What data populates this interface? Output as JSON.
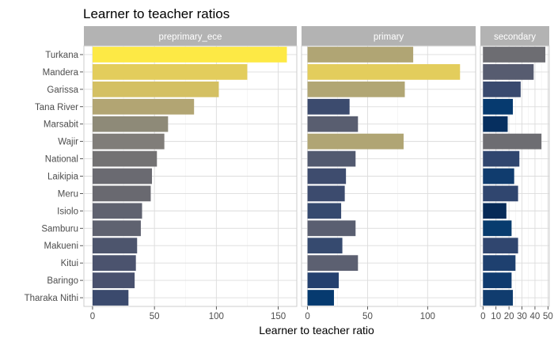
{
  "chart_data": {
    "type": "bar",
    "orientation": "horizontal",
    "title": "Learner to teacher ratios",
    "xlabel": "Learner to teacher ratio",
    "ylabel": "",
    "grid": true,
    "legend": "none",
    "categories": [
      "Turkana",
      "Mandera",
      "Garissa",
      "Tana River",
      "Marsabit",
      "Wajir",
      "National",
      "Laikipia",
      "Meru",
      "Isiolo",
      "Samburu",
      "Makueni",
      "Kitui",
      "Baringo",
      "Tharaka Nithi"
    ],
    "facets": [
      {
        "name": "preprimary_ece",
        "xlim": [
          -7,
          165
        ],
        "ticks": [
          0,
          50,
          100,
          150
        ],
        "tick_labels": [
          "0",
          "50",
          "100",
          "150"
        ],
        "values": [
          157,
          125,
          102,
          82,
          61,
          58,
          52,
          48,
          47,
          40,
          39,
          36,
          35,
          34,
          29
        ],
        "colors": [
          "#fde945",
          "#e3cd5c",
          "#d4c063",
          "#b2a573",
          "#8e8a78",
          "#807d79",
          "#737273",
          "#6a6a71",
          "#696970",
          "#5f6270",
          "#5f6270",
          "#4d556d",
          "#4b536e",
          "#49516e",
          "#3b4a6d"
        ]
      },
      {
        "name": "primary",
        "xlim": [
          -5,
          140
        ],
        "ticks": [
          0,
          50,
          100
        ],
        "tick_labels": [
          "0",
          "50",
          "100"
        ],
        "values": [
          88,
          127,
          81,
          35,
          42,
          80,
          40,
          32,
          31,
          28,
          40,
          29,
          42,
          26,
          22
        ],
        "colors": [
          "#b0a574",
          "#e3cd5c",
          "#b1a674",
          "#3c4b6e",
          "#595e70",
          "#b0a574",
          "#525a70",
          "#3e4c6e",
          "#3c4b6e",
          "#364a6f",
          "#5a5f71",
          "#364a6f",
          "#5c6071",
          "#25416f",
          "#063a6f"
        ]
      },
      {
        "name": "secondary",
        "xlim": [
          -2,
          51
        ],
        "ticks": [
          0,
          10,
          20,
          30,
          40,
          50
        ],
        "tick_labels": [
          "0",
          "10",
          "20",
          "30",
          "40",
          "50"
        ],
        "values": [
          48,
          39,
          29,
          23,
          19,
          45,
          28,
          24,
          27,
          18,
          22,
          27,
          25,
          22,
          23
        ],
        "colors": [
          "#6d6d72",
          "#575c70",
          "#394a6f",
          "#063a6f",
          "#062f5f",
          "#6d6d72",
          "#30466f",
          "#103c6e",
          "#30466f",
          "#062a57",
          "#083c6e",
          "#30466f",
          "#1e406f",
          "#0f3b6f",
          "#103c6e"
        ]
      }
    ]
  }
}
